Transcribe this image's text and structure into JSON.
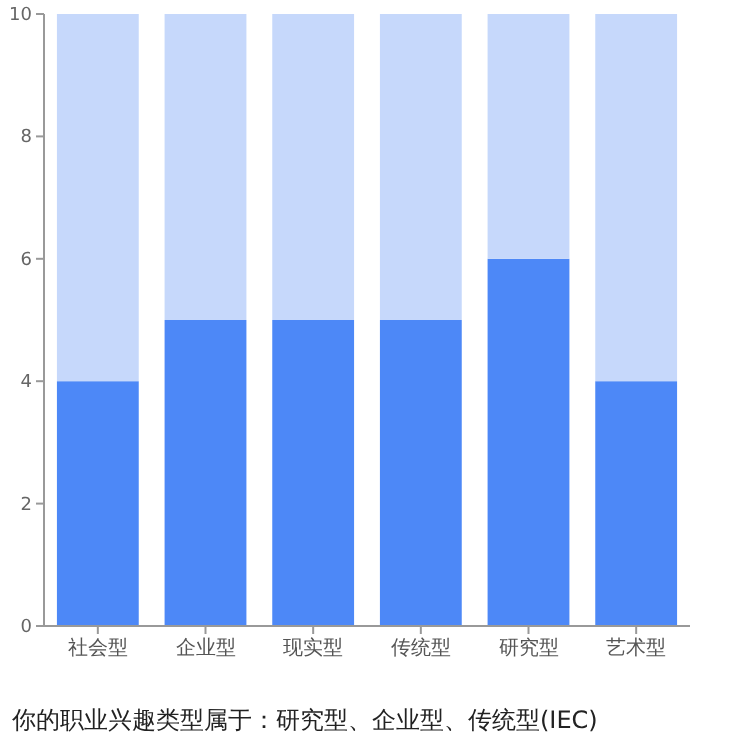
{
  "chart_data": {
    "type": "bar",
    "stacked": true,
    "categories": [
      "社会型",
      "企业型",
      "现实型",
      "传统型",
      "研究型",
      "艺术型"
    ],
    "series": [
      {
        "color": "#4d88f7",
        "values": [
          4,
          5,
          5,
          5,
          6,
          4
        ]
      },
      {
        "color": "#c6d8fb",
        "values": [
          6,
          5,
          5,
          5,
          4,
          6
        ]
      }
    ],
    "ylim": [
      0,
      10
    ],
    "yticks": [
      0,
      2,
      4,
      6,
      8,
      10
    ],
    "annotations": [
      "你的职业兴趣类型属于：研究型、企业型、传统型(IEC)"
    ]
  }
}
